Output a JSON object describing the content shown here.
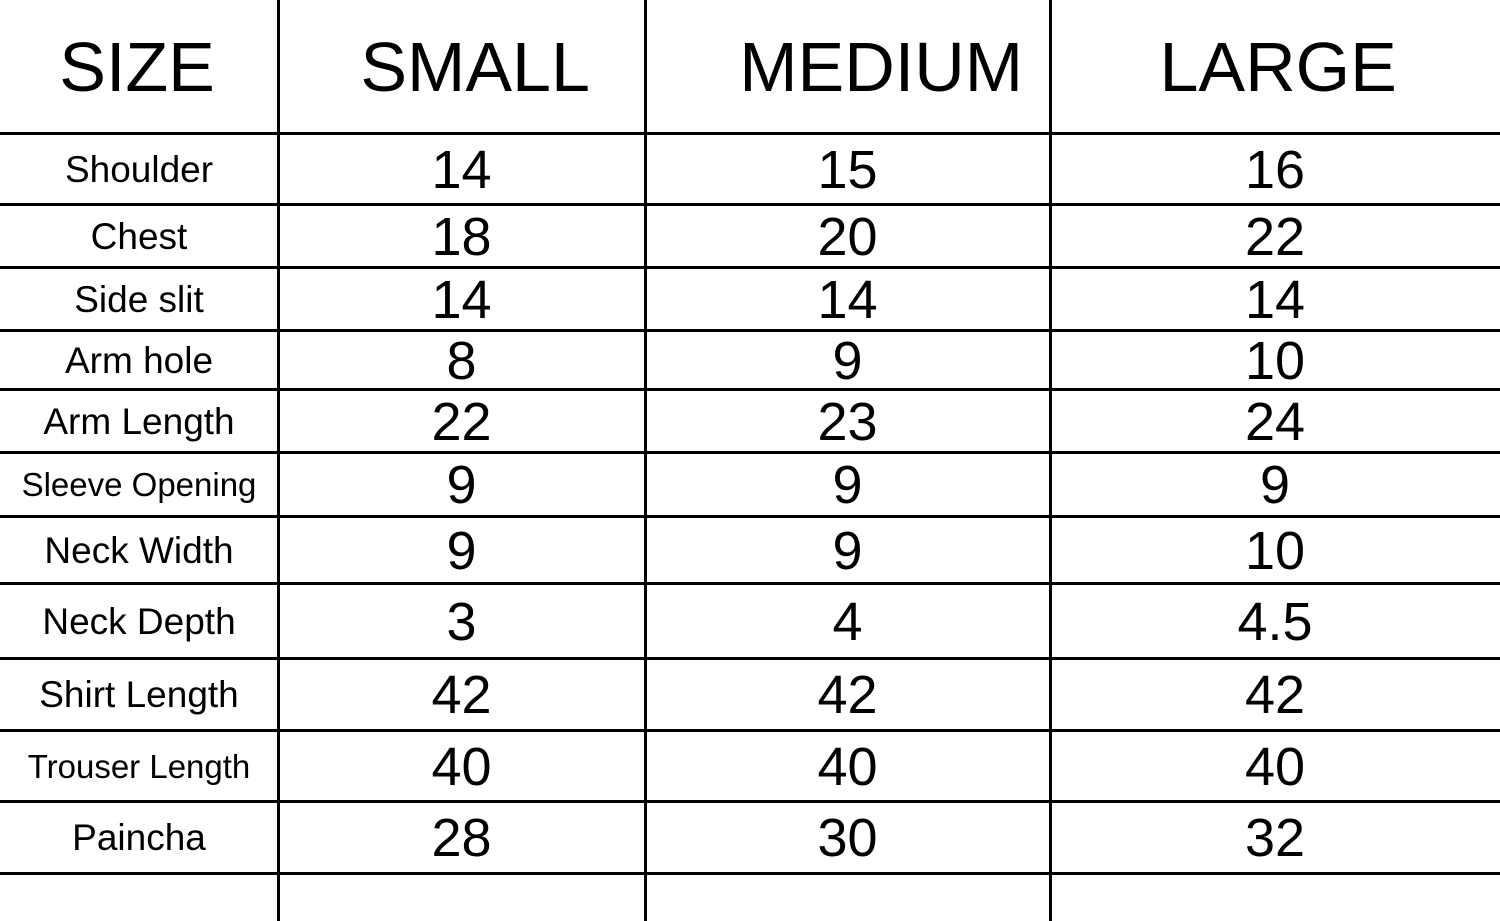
{
  "table": {
    "headers": [
      "SIZE",
      "SMALL",
      "MEDIUM",
      "LARGE"
    ],
    "rows": [
      {
        "label": "Shoulder",
        "values": [
          "14",
          "15",
          "16"
        ]
      },
      {
        "label": "Chest",
        "values": [
          "18",
          "20",
          "22"
        ]
      },
      {
        "label": "Side slit",
        "values": [
          "14",
          "14",
          "14"
        ]
      },
      {
        "label": "Arm hole",
        "values": [
          "8",
          "9",
          "10"
        ]
      },
      {
        "label": "Arm Length",
        "values": [
          "22",
          "23",
          "24"
        ]
      },
      {
        "label": "Sleeve Opening",
        "values": [
          "9",
          "9",
          "9"
        ]
      },
      {
        "label": "Neck Width",
        "values": [
          "9",
          "9",
          "10"
        ]
      },
      {
        "label": "Neck Depth",
        "values": [
          "3",
          "4",
          "4.5"
        ]
      },
      {
        "label": "Shirt Length",
        "values": [
          "42",
          "42",
          "42"
        ]
      },
      {
        "label": "Trouser Length",
        "values": [
          "40",
          "40",
          "40"
        ]
      },
      {
        "label": "Paincha",
        "values": [
          "28",
          "30",
          "32"
        ]
      }
    ]
  }
}
